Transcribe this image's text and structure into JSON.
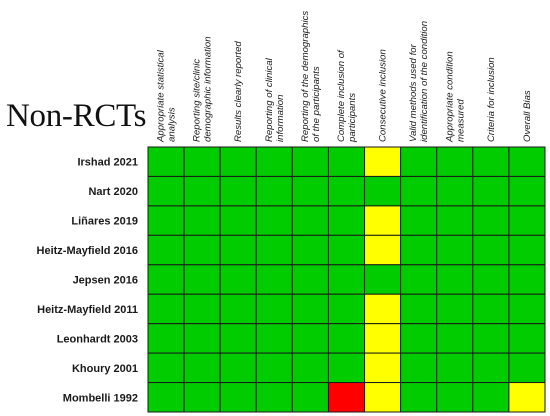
{
  "title": "Non-RCTs",
  "legend": {
    "low": "#00cc00",
    "unclear": "#ffff00",
    "high": "#ff0000"
  },
  "chart_data": {
    "type": "heatmap",
    "title": "Non-RCTs",
    "columns": [
      [
        "Appropriate statistical",
        "analysis"
      ],
      [
        "Reporting site/clinic",
        "demographic information"
      ],
      [
        "Results clearly reported"
      ],
      [
        "Reporting of clinical",
        "information"
      ],
      [
        "Reporting of the demographics",
        "of the participants"
      ],
      [
        "Complete inclusion of",
        "participants"
      ],
      [
        "Consecutive inclusion"
      ],
      [
        "Valid methods used for",
        "identification of the condition"
      ],
      [
        "Appropriate condition",
        "measured"
      ],
      [
        "Criteria for inclusion"
      ],
      [
        "Overall Bias"
      ]
    ],
    "rows": [
      {
        "study": "Irshad 2021",
        "ratings": [
          "low",
          "low",
          "low",
          "low",
          "low",
          "low",
          "unclear",
          "low",
          "low",
          "low",
          "low"
        ]
      },
      {
        "study": "Nart 2020",
        "ratings": [
          "low",
          "low",
          "low",
          "low",
          "low",
          "low",
          "low",
          "low",
          "low",
          "low",
          "low"
        ]
      },
      {
        "study": "Liñares 2019",
        "ratings": [
          "low",
          "low",
          "low",
          "low",
          "low",
          "low",
          "unclear",
          "low",
          "low",
          "low",
          "low"
        ]
      },
      {
        "study": "Heitz-Mayfield 2016",
        "ratings": [
          "low",
          "low",
          "low",
          "low",
          "low",
          "low",
          "unclear",
          "low",
          "low",
          "low",
          "low"
        ]
      },
      {
        "study": "Jepsen 2016",
        "ratings": [
          "low",
          "low",
          "low",
          "low",
          "low",
          "low",
          "low",
          "low",
          "low",
          "low",
          "low"
        ]
      },
      {
        "study": "Heitz-Mayfield 2011",
        "ratings": [
          "low",
          "low",
          "low",
          "low",
          "low",
          "low",
          "unclear",
          "low",
          "low",
          "low",
          "low"
        ]
      },
      {
        "study": "Leonhardt 2003",
        "ratings": [
          "low",
          "low",
          "low",
          "low",
          "low",
          "low",
          "unclear",
          "low",
          "low",
          "low",
          "low"
        ]
      },
      {
        "study": "Khoury 2001",
        "ratings": [
          "low",
          "low",
          "low",
          "low",
          "low",
          "low",
          "unclear",
          "low",
          "low",
          "low",
          "low"
        ]
      },
      {
        "study": "Mombelli 1992",
        "ratings": [
          "low",
          "low",
          "low",
          "low",
          "low",
          "high",
          "unclear",
          "low",
          "low",
          "low",
          "unclear"
        ]
      }
    ]
  }
}
